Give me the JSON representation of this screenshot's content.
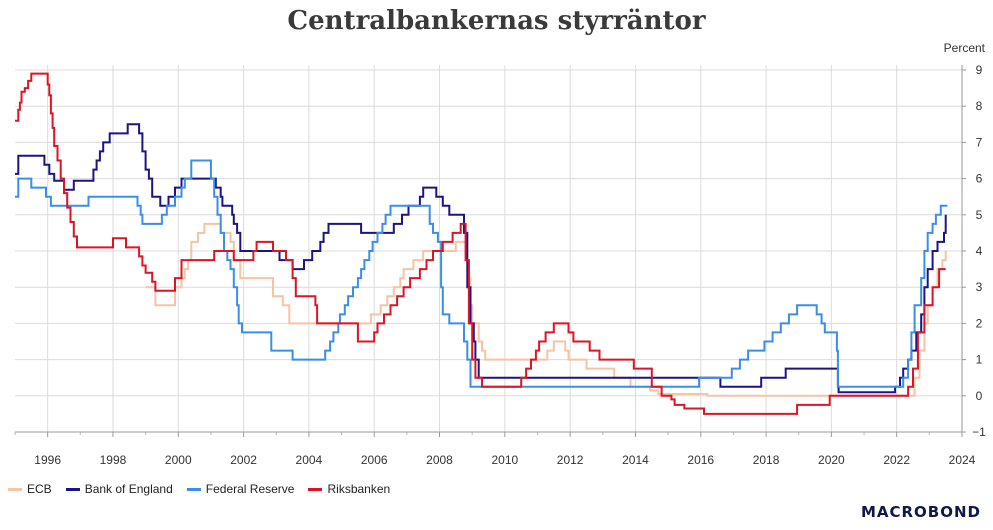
{
  "chart_data": {
    "type": "line",
    "title": "Centralbankernas styrräntor",
    "ylabel": "Percent",
    "xlim": [
      1995.0,
      2024.0
    ],
    "ylim": [
      -1,
      9
    ],
    "y_ticks": [
      -1,
      0,
      1,
      2,
      3,
      4,
      5,
      6,
      7,
      8,
      9
    ],
    "x_ticks": [
      1996,
      1998,
      2000,
      2002,
      2004,
      2006,
      2008,
      2010,
      2012,
      2014,
      2016,
      2018,
      2020,
      2022,
      2024
    ],
    "grid": true,
    "y_axis_position": "right",
    "legend_position": "bottom-left",
    "series": [
      {
        "name": "ECB",
        "color": "#f6c3a5",
        "points": [
          [
            1999.0,
            3.0
          ],
          [
            1999.3,
            2.5
          ],
          [
            1999.9,
            3.0
          ],
          [
            2000.1,
            3.25
          ],
          [
            2000.2,
            3.5
          ],
          [
            2000.3,
            3.75
          ],
          [
            2000.4,
            4.25
          ],
          [
            2000.6,
            4.5
          ],
          [
            2000.8,
            4.75
          ],
          [
            2001.3,
            4.5
          ],
          [
            2001.6,
            4.25
          ],
          [
            2001.7,
            3.75
          ],
          [
            2001.9,
            3.25
          ],
          [
            2002.9,
            2.75
          ],
          [
            2003.2,
            2.5
          ],
          [
            2003.4,
            2.0
          ],
          [
            2005.9,
            2.25
          ],
          [
            2006.2,
            2.5
          ],
          [
            2006.4,
            2.75
          ],
          [
            2006.6,
            3.0
          ],
          [
            2006.8,
            3.25
          ],
          [
            2006.9,
            3.5
          ],
          [
            2007.2,
            3.75
          ],
          [
            2007.5,
            4.0
          ],
          [
            2008.5,
            4.25
          ],
          [
            2008.8,
            3.75
          ],
          [
            2008.9,
            3.25
          ],
          [
            2008.95,
            2.5
          ],
          [
            2009.0,
            2.0
          ],
          [
            2009.2,
            1.5
          ],
          [
            2009.3,
            1.25
          ],
          [
            2009.4,
            1.0
          ],
          [
            2011.3,
            1.25
          ],
          [
            2011.5,
            1.5
          ],
          [
            2011.85,
            1.25
          ],
          [
            2011.95,
            1.0
          ],
          [
            2012.5,
            0.75
          ],
          [
            2013.35,
            0.5
          ],
          [
            2013.85,
            0.25
          ],
          [
            2014.45,
            0.15
          ],
          [
            2014.7,
            0.05
          ],
          [
            2016.2,
            0.0
          ],
          [
            2022.55,
            0.5
          ],
          [
            2022.7,
            1.25
          ],
          [
            2022.85,
            2.0
          ],
          [
            2022.95,
            2.5
          ],
          [
            2023.1,
            3.0
          ],
          [
            2023.25,
            3.5
          ],
          [
            2023.4,
            3.75
          ],
          [
            2023.5,
            4.0
          ]
        ]
      },
      {
        "name": "Bank of England",
        "color": "#1c1484",
        "points": [
          [
            1995.0,
            6.13
          ],
          [
            1995.1,
            6.63
          ],
          [
            1995.9,
            6.38
          ],
          [
            1996.05,
            6.13
          ],
          [
            1996.2,
            5.94
          ],
          [
            1996.5,
            5.69
          ],
          [
            1996.8,
            5.94
          ],
          [
            1997.4,
            6.25
          ],
          [
            1997.5,
            6.5
          ],
          [
            1997.6,
            6.75
          ],
          [
            1997.7,
            7.0
          ],
          [
            1997.9,
            7.25
          ],
          [
            1998.45,
            7.5
          ],
          [
            1998.8,
            7.25
          ],
          [
            1998.9,
            6.75
          ],
          [
            1999.0,
            6.25
          ],
          [
            1999.1,
            6.0
          ],
          [
            1999.2,
            5.5
          ],
          [
            1999.45,
            5.25
          ],
          [
            1999.7,
            5.5
          ],
          [
            1999.9,
            5.75
          ],
          [
            2000.1,
            6.0
          ],
          [
            2001.15,
            5.75
          ],
          [
            2001.3,
            5.5
          ],
          [
            2001.35,
            5.25
          ],
          [
            2001.65,
            5.0
          ],
          [
            2001.7,
            4.75
          ],
          [
            2001.8,
            4.5
          ],
          [
            2001.9,
            4.0
          ],
          [
            2003.1,
            3.75
          ],
          [
            2003.5,
            3.5
          ],
          [
            2003.85,
            3.75
          ],
          [
            2004.1,
            4.0
          ],
          [
            2004.35,
            4.25
          ],
          [
            2004.45,
            4.5
          ],
          [
            2004.6,
            4.75
          ],
          [
            2005.6,
            4.5
          ],
          [
            2006.6,
            4.75
          ],
          [
            2006.85,
            5.0
          ],
          [
            2007.05,
            5.25
          ],
          [
            2007.4,
            5.5
          ],
          [
            2007.5,
            5.75
          ],
          [
            2007.9,
            5.5
          ],
          [
            2008.1,
            5.25
          ],
          [
            2008.3,
            5.0
          ],
          [
            2008.75,
            4.5
          ],
          [
            2008.85,
            3.0
          ],
          [
            2008.95,
            2.0
          ],
          [
            2009.05,
            1.5
          ],
          [
            2009.1,
            1.0
          ],
          [
            2009.2,
            0.5
          ],
          [
            2016.6,
            0.25
          ],
          [
            2017.85,
            0.5
          ],
          [
            2018.6,
            0.75
          ],
          [
            2020.2,
            0.25
          ],
          [
            2020.22,
            0.1
          ],
          [
            2021.95,
            0.25
          ],
          [
            2022.1,
            0.5
          ],
          [
            2022.2,
            0.75
          ],
          [
            2022.35,
            1.0
          ],
          [
            2022.45,
            1.25
          ],
          [
            2022.6,
            1.75
          ],
          [
            2022.75,
            2.25
          ],
          [
            2022.85,
            3.0
          ],
          [
            2022.95,
            3.5
          ],
          [
            2023.1,
            4.0
          ],
          [
            2023.25,
            4.25
          ],
          [
            2023.45,
            4.5
          ],
          [
            2023.5,
            5.0
          ]
        ]
      },
      {
        "name": "Federal Reserve",
        "color": "#3b8ee8",
        "points": [
          [
            1995.0,
            5.5
          ],
          [
            1995.1,
            6.0
          ],
          [
            1995.5,
            5.75
          ],
          [
            1995.95,
            5.5
          ],
          [
            1996.1,
            5.25
          ],
          [
            1997.25,
            5.5
          ],
          [
            1998.75,
            5.25
          ],
          [
            1998.85,
            5.0
          ],
          [
            1998.9,
            4.75
          ],
          [
            1999.5,
            5.0
          ],
          [
            1999.65,
            5.25
          ],
          [
            1999.9,
            5.5
          ],
          [
            2000.1,
            5.75
          ],
          [
            2000.2,
            6.0
          ],
          [
            2000.4,
            6.5
          ],
          [
            2001.0,
            6.0
          ],
          [
            2001.1,
            5.5
          ],
          [
            2001.2,
            5.0
          ],
          [
            2001.3,
            4.5
          ],
          [
            2001.4,
            4.0
          ],
          [
            2001.5,
            3.75
          ],
          [
            2001.6,
            3.5
          ],
          [
            2001.7,
            3.0
          ],
          [
            2001.8,
            2.5
          ],
          [
            2001.85,
            2.0
          ],
          [
            2001.95,
            1.75
          ],
          [
            2002.85,
            1.25
          ],
          [
            2003.5,
            1.0
          ],
          [
            2004.5,
            1.25
          ],
          [
            2004.65,
            1.5
          ],
          [
            2004.75,
            1.75
          ],
          [
            2004.9,
            2.0
          ],
          [
            2004.95,
            2.25
          ],
          [
            2005.1,
            2.5
          ],
          [
            2005.2,
            2.75
          ],
          [
            2005.35,
            3.0
          ],
          [
            2005.5,
            3.25
          ],
          [
            2005.6,
            3.5
          ],
          [
            2005.7,
            3.75
          ],
          [
            2005.85,
            4.0
          ],
          [
            2005.95,
            4.25
          ],
          [
            2006.1,
            4.5
          ],
          [
            2006.25,
            4.75
          ],
          [
            2006.35,
            5.0
          ],
          [
            2006.5,
            5.25
          ],
          [
            2007.7,
            4.75
          ],
          [
            2007.8,
            4.5
          ],
          [
            2007.95,
            4.25
          ],
          [
            2008.05,
            3.0
          ],
          [
            2008.1,
            2.25
          ],
          [
            2008.3,
            2.0
          ],
          [
            2008.75,
            1.5
          ],
          [
            2008.85,
            1.0
          ],
          [
            2008.95,
            0.25
          ],
          [
            2015.95,
            0.5
          ],
          [
            2016.95,
            0.75
          ],
          [
            2017.2,
            1.0
          ],
          [
            2017.45,
            1.25
          ],
          [
            2017.95,
            1.5
          ],
          [
            2018.2,
            1.75
          ],
          [
            2018.45,
            2.0
          ],
          [
            2018.7,
            2.25
          ],
          [
            2018.95,
            2.5
          ],
          [
            2019.55,
            2.25
          ],
          [
            2019.7,
            2.0
          ],
          [
            2019.8,
            1.75
          ],
          [
            2020.17,
            1.25
          ],
          [
            2020.2,
            0.25
          ],
          [
            2022.2,
            0.5
          ],
          [
            2022.35,
            1.0
          ],
          [
            2022.45,
            1.75
          ],
          [
            2022.55,
            2.5
          ],
          [
            2022.75,
            3.25
          ],
          [
            2022.85,
            4.0
          ],
          [
            2022.95,
            4.5
          ],
          [
            2023.1,
            4.75
          ],
          [
            2023.2,
            5.0
          ],
          [
            2023.35,
            5.25
          ],
          [
            2023.55,
            5.25
          ]
        ]
      },
      {
        "name": "Riksbanken",
        "color": "#dc1526",
        "points": [
          [
            1995.0,
            7.6
          ],
          [
            1995.1,
            7.9
          ],
          [
            1995.15,
            8.1
          ],
          [
            1995.2,
            8.4
          ],
          [
            1995.3,
            8.5
          ],
          [
            1995.4,
            8.7
          ],
          [
            1995.5,
            8.9
          ],
          [
            1996.0,
            8.6
          ],
          [
            1996.05,
            8.3
          ],
          [
            1996.1,
            7.8
          ],
          [
            1996.15,
            7.4
          ],
          [
            1996.2,
            6.9
          ],
          [
            1996.3,
            6.5
          ],
          [
            1996.4,
            6.0
          ],
          [
            1996.5,
            5.6
          ],
          [
            1996.6,
            5.2
          ],
          [
            1996.7,
            4.8
          ],
          [
            1996.8,
            4.4
          ],
          [
            1996.9,
            4.1
          ],
          [
            1998.0,
            4.35
          ],
          [
            1998.4,
            4.1
          ],
          [
            1998.8,
            3.85
          ],
          [
            1998.9,
            3.6
          ],
          [
            1999.0,
            3.4
          ],
          [
            1999.2,
            3.15
          ],
          [
            1999.3,
            2.9
          ],
          [
            1999.9,
            3.25
          ],
          [
            2000.1,
            3.75
          ],
          [
            2001.1,
            4.0
          ],
          [
            2001.7,
            3.75
          ],
          [
            2002.3,
            4.0
          ],
          [
            2002.4,
            4.25
          ],
          [
            2002.9,
            4.0
          ],
          [
            2003.3,
            3.75
          ],
          [
            2003.5,
            3.25
          ],
          [
            2003.6,
            2.75
          ],
          [
            2004.2,
            2.5
          ],
          [
            2004.25,
            2.0
          ],
          [
            2005.5,
            1.5
          ],
          [
            2006.0,
            1.75
          ],
          [
            2006.1,
            2.0
          ],
          [
            2006.3,
            2.25
          ],
          [
            2006.5,
            2.5
          ],
          [
            2006.7,
            2.75
          ],
          [
            2006.9,
            3.0
          ],
          [
            2007.1,
            3.25
          ],
          [
            2007.4,
            3.5
          ],
          [
            2007.6,
            3.75
          ],
          [
            2007.8,
            4.0
          ],
          [
            2008.1,
            4.25
          ],
          [
            2008.4,
            4.5
          ],
          [
            2008.65,
            4.75
          ],
          [
            2008.8,
            3.75
          ],
          [
            2008.9,
            2.0
          ],
          [
            2009.0,
            1.0
          ],
          [
            2009.1,
            0.5
          ],
          [
            2009.3,
            0.25
          ],
          [
            2010.5,
            0.5
          ],
          [
            2010.65,
            0.75
          ],
          [
            2010.8,
            1.0
          ],
          [
            2010.95,
            1.25
          ],
          [
            2011.05,
            1.5
          ],
          [
            2011.25,
            1.75
          ],
          [
            2011.5,
            2.0
          ],
          [
            2011.95,
            1.75
          ],
          [
            2012.1,
            1.5
          ],
          [
            2012.6,
            1.25
          ],
          [
            2012.9,
            1.0
          ],
          [
            2013.95,
            0.75
          ],
          [
            2014.5,
            0.25
          ],
          [
            2014.8,
            0.0
          ],
          [
            2015.1,
            -0.1
          ],
          [
            2015.2,
            -0.25
          ],
          [
            2015.5,
            -0.35
          ],
          [
            2016.1,
            -0.5
          ],
          [
            2018.95,
            -0.25
          ],
          [
            2019.95,
            0.0
          ],
          [
            2022.35,
            0.25
          ],
          [
            2022.5,
            0.75
          ],
          [
            2022.65,
            1.75
          ],
          [
            2022.85,
            2.5
          ],
          [
            2023.1,
            3.0
          ],
          [
            2023.3,
            3.5
          ],
          [
            2023.5,
            3.5
          ]
        ]
      }
    ]
  },
  "brand": "MACROBOND"
}
